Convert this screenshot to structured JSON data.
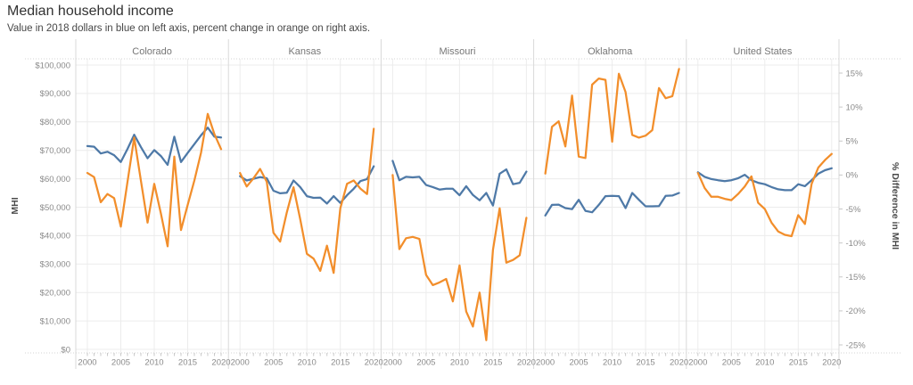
{
  "chart_data": {
    "type": "line",
    "title": "Median household income",
    "subtitle": "Value in 2018 dollars in blue on left axis, percent change in orange on right axis.",
    "x": [
      2000,
      2001,
      2002,
      2003,
      2004,
      2005,
      2006,
      2007,
      2008,
      2009,
      2010,
      2011,
      2012,
      2013,
      2014,
      2015,
      2016,
      2017,
      2018,
      2019,
      2020
    ],
    "x_ticks": [
      {
        "v": 2000,
        "label": "2000"
      },
      {
        "v": 2005,
        "label": "2005"
      },
      {
        "v": 2010,
        "label": "2010"
      },
      {
        "v": 2015,
        "label": "2015"
      },
      {
        "v": 2020,
        "label": "2020"
      }
    ],
    "left_axis": {
      "label": "MHI",
      "range": [
        0,
        100000
      ],
      "ticks": [
        {
          "v": 0,
          "label": "$0"
        },
        {
          "v": 10000,
          "label": "$10,000"
        },
        {
          "v": 20000,
          "label": "$20,000"
        },
        {
          "v": 30000,
          "label": "$30,000"
        },
        {
          "v": 40000,
          "label": "$40,000"
        },
        {
          "v": 50000,
          "label": "$50,000"
        },
        {
          "v": 60000,
          "label": "$60,000"
        },
        {
          "v": 70000,
          "label": "$70,000"
        },
        {
          "v": 80000,
          "label": "$80,000"
        },
        {
          "v": 90000,
          "label": "$90,000"
        },
        {
          "v": 100000,
          "label": "$100,000"
        }
      ]
    },
    "right_axis": {
      "label": "% Difference in MHI",
      "range": [
        -25,
        15
      ],
      "ticks": [
        {
          "v": 15,
          "label": "15%"
        },
        {
          "v": 10,
          "label": "10%"
        },
        {
          "v": 5,
          "label": "5%"
        },
        {
          "v": 0,
          "label": "0%"
        },
        {
          "v": -5,
          "label": "-5%"
        },
        {
          "v": -10,
          "label": "-10%"
        },
        {
          "v": -15,
          "label": "-15%"
        },
        {
          "v": -20,
          "label": "-20%"
        },
        {
          "v": -25,
          "label": "-25%"
        }
      ]
    },
    "series_colors": {
      "mhi": "#4e79a7",
      "pct": "#f28e2b"
    },
    "grid": true,
    "legend": "none",
    "panels": [
      {
        "title": "Colorado",
        "mhi": [
          71500,
          71300,
          68900,
          69500,
          68300,
          65900,
          70500,
          75500,
          71200,
          67200,
          70100,
          68000,
          64900,
          74800,
          65900,
          69100,
          72200,
          75300,
          78000,
          74800,
          74500
        ],
        "pct": [
          0.3,
          -0.3,
          -4.0,
          -2.8,
          -3.4,
          -7.6,
          -1.0,
          5.5,
          -0.8,
          -7.0,
          -1.3,
          -5.7,
          -10.5,
          2.7,
          -8.1,
          -4.4,
          -0.8,
          3.3,
          9.0,
          6.0,
          3.8
        ]
      },
      {
        "title": "Kansas",
        "mhi": [
          60900,
          59400,
          60000,
          60600,
          60200,
          55800,
          54900,
          55100,
          59400,
          57100,
          53900,
          53300,
          53400,
          51300,
          53900,
          51500,
          54200,
          56500,
          59200,
          59900,
          64400
        ],
        "pct": [
          0.3,
          -1.7,
          -0.5,
          0.9,
          -1.0,
          -8.5,
          -9.8,
          -5.5,
          -1.8,
          -6.5,
          -11.6,
          -12.3,
          -14.1,
          -10.4,
          -14.4,
          -4.9,
          -1.3,
          -0.8,
          -2.0,
          -2.8,
          6.8
        ]
      },
      {
        "title": "Missouri",
        "mhi": [
          66300,
          59500,
          60700,
          60500,
          60700,
          57800,
          57100,
          56200,
          56500,
          56500,
          54200,
          57400,
          54300,
          52400,
          55000,
          50600,
          61800,
          63300,
          58100,
          58600,
          62500
        ],
        "pct": [
          0.0,
          -10.9,
          -9.3,
          -9.1,
          -9.4,
          -14.7,
          -16.2,
          -15.8,
          -15.3,
          -18.6,
          -13.3,
          -20.1,
          -22.3,
          -17.3,
          -24.3,
          -11.0,
          -4.9,
          -12.9,
          -12.5,
          -11.8,
          -6.3
        ]
      },
      {
        "title": "Oklahoma",
        "mhi": [
          47100,
          50800,
          50900,
          49700,
          49300,
          52600,
          48700,
          48200,
          50800,
          53900,
          54000,
          53900,
          49700,
          55000,
          52600,
          50300,
          50300,
          50400,
          54000,
          54100,
          55000
        ],
        "pct": [
          0.2,
          7.1,
          7.9,
          4.2,
          11.7,
          2.7,
          2.5,
          13.3,
          14.2,
          14.0,
          4.9,
          14.9,
          12.2,
          5.9,
          5.5,
          5.8,
          6.6,
          12.8,
          11.3,
          11.6,
          15.6
        ]
      },
      {
        "title": "United States",
        "mhi": [
          62300,
          60700,
          59900,
          59500,
          59200,
          59500,
          60200,
          61400,
          59500,
          58600,
          58100,
          57100,
          56300,
          56000,
          56000,
          58100,
          57400,
          59500,
          61800,
          63000,
          63700
        ],
        "pct": [
          0.3,
          -1.9,
          -3.2,
          -3.2,
          -3.5,
          -3.7,
          -2.8,
          -1.7,
          -0.2,
          -4.1,
          -5.0,
          -7.0,
          -8.3,
          -8.8,
          -9.0,
          -5.9,
          -7.2,
          -1.3,
          1.1,
          2.2,
          3.1
        ]
      }
    ]
  }
}
